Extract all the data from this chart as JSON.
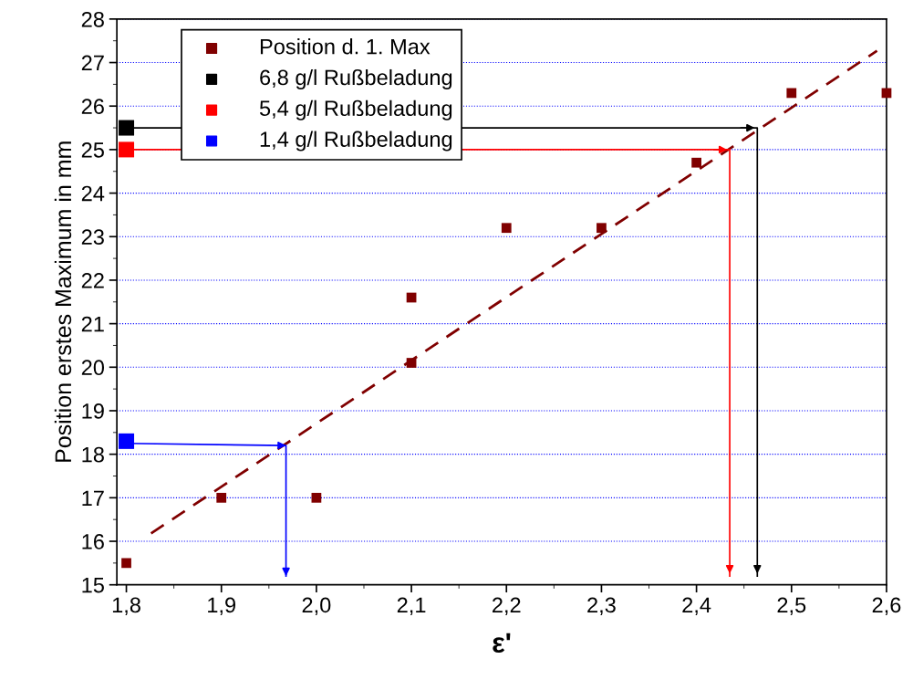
{
  "chart_data": {
    "type": "scatter",
    "xlabel": "ε'",
    "ylabel": "Position erstes Maximum in mm",
    "xlim": [
      1.79,
      2.6
    ],
    "xticks": [
      {
        "value": 1.8,
        "label": "1,8"
      },
      {
        "value": 1.9,
        "label": "1,9"
      },
      {
        "value": 2.0,
        "label": "2,0"
      },
      {
        "value": 2.1,
        "label": "2,1"
      },
      {
        "value": 2.2,
        "label": "2,2"
      },
      {
        "value": 2.3,
        "label": "2,3"
      },
      {
        "value": 2.4,
        "label": "2,4"
      },
      {
        "value": 2.5,
        "label": "2,5"
      },
      {
        "value": 2.6,
        "label": "2,6"
      }
    ],
    "ylim": [
      15,
      28
    ],
    "yticks": [
      15,
      16,
      17,
      18,
      19,
      20,
      21,
      22,
      23,
      24,
      25,
      26,
      27,
      28
    ],
    "grid": "y",
    "legend": "top left",
    "marker": "square",
    "series": [
      {
        "name": "Position d. 1. Max",
        "color": "#800000",
        "x": [
          1.8,
          1.9,
          2.0,
          2.1,
          2.1,
          2.2,
          2.3,
          2.4,
          2.5,
          2.6
        ],
        "values": [
          15.5,
          17,
          17,
          21.6,
          20.1,
          23.2,
          23.2,
          24.7,
          26.3,
          26.3
        ]
      },
      {
        "type": "line",
        "color": "#800000",
        "line_style": "dashed",
        "marker": "none",
        "x": [
          1.826,
          2.59
        ],
        "values": [
          16.18,
          27.27
        ]
      },
      {
        "name": "6,8 g/l Rußbeladung",
        "color": "#000000",
        "x": [
          1.8
        ],
        "values": [
          25.5
        ]
      },
      {
        "name": "5,4 g/l Rußbeladung",
        "color": "#ff0000",
        "x": [
          1.8
        ],
        "values": [
          25.0
        ]
      },
      {
        "name": "1,4 g/l Rußbeladung",
        "color": "#0000ff",
        "x": [
          1.8
        ],
        "values": [
          18.3
        ]
      },
      {
        "type": "line",
        "color": "#000000",
        "marker": "none",
        "line_style": "solid",
        "x": [
          1.8,
          2.464,
          2.464
        ],
        "values": [
          25.5,
          25.5,
          15.2
        ]
      },
      {
        "type": "line",
        "color": "#ff0000",
        "marker": "none",
        "line_style": "solid",
        "x": [
          1.8,
          2.435,
          2.435
        ],
        "values": [
          25.0,
          25.0,
          15.2
        ]
      },
      {
        "type": "line",
        "color": "#0000ff",
        "marker": "none",
        "line_style": "solid",
        "x": [
          1.8,
          1.968,
          1.968
        ],
        "values": [
          18.25,
          18.2,
          15.2
        ]
      }
    ]
  }
}
